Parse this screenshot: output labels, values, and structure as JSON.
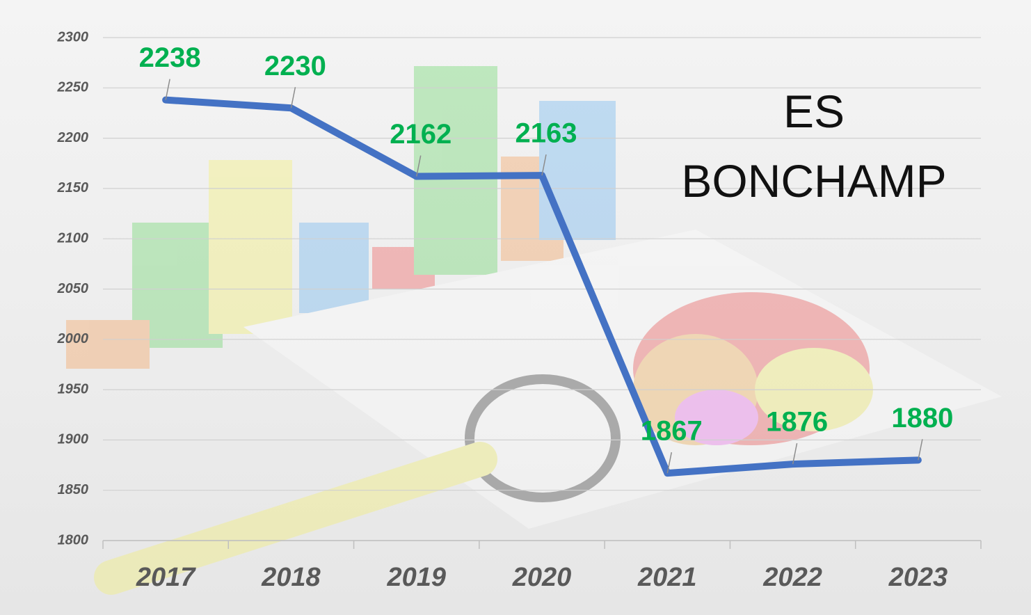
{
  "chart_data": {
    "type": "line",
    "title": "ES BONCHAMP",
    "categories": [
      "2017",
      "2018",
      "2019",
      "2020",
      "2021",
      "2022",
      "2023"
    ],
    "values": [
      2238,
      2230,
      2162,
      2163,
      1867,
      1876,
      1880
    ],
    "color": "#4472c4",
    "label_color": "#00b050",
    "ylim": [
      1800,
      2300
    ],
    "yticks": [
      1800,
      1850,
      1900,
      1950,
      2000,
      2050,
      2100,
      2150,
      2200,
      2250,
      2300
    ],
    "grid": true
  }
}
